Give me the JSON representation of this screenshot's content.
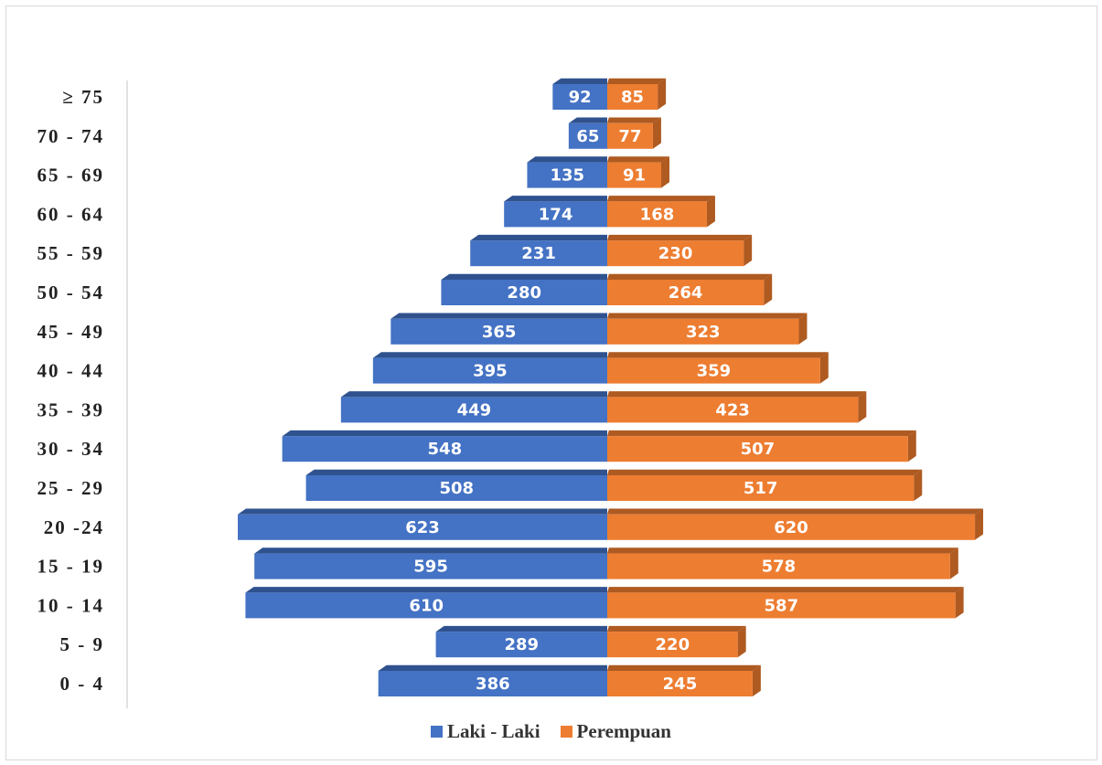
{
  "chart_data": {
    "type": "bar",
    "orientation": "horizontal-population-pyramid",
    "categories": [
      "0 - 4",
      "5 - 9",
      "10 - 14",
      "15 - 19",
      "20 -24",
      "25 - 29",
      "30 - 34",
      "35 - 39",
      "40 - 44",
      "45 - 49",
      "50 - 54",
      "55 - 59",
      "60 - 64",
      "65 - 69",
      "70 - 74",
      "≥ 75"
    ],
    "series": [
      {
        "name": "Laki - Laki",
        "color": "#4472C4",
        "values": [
          386,
          289,
          610,
          595,
          623,
          508,
          548,
          449,
          395,
          365,
          280,
          231,
          174,
          135,
          65,
          92
        ]
      },
      {
        "name": "Perempuan",
        "color": "#ED7D31",
        "values": [
          245,
          220,
          587,
          578,
          620,
          517,
          507,
          423,
          359,
          323,
          264,
          230,
          168,
          91,
          77,
          85
        ]
      }
    ],
    "xlim": [
      -623,
      623
    ],
    "legend_position": "bottom",
    "data_labels": true,
    "grid": false,
    "style": "3d"
  }
}
